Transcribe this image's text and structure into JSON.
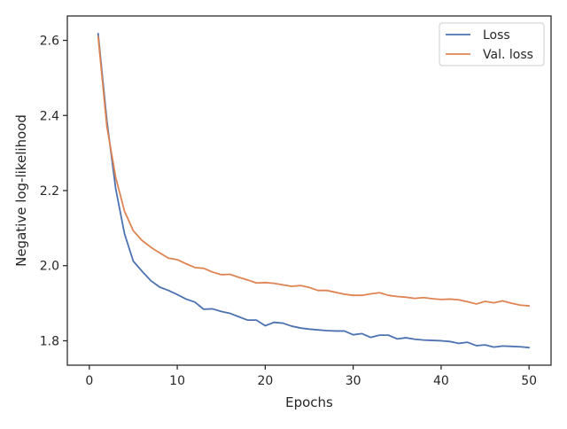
{
  "chart_data": {
    "type": "line",
    "xlabel": "Epochs",
    "ylabel": "Negative log-likelihood",
    "xlim": [
      -2.5,
      52.5
    ],
    "ylim": [
      1.735,
      2.665
    ],
    "xticks": [
      0,
      10,
      20,
      30,
      40,
      50
    ],
    "yticks": [
      1.8,
      2.0,
      2.2,
      2.4,
      2.6
    ],
    "xtick_labels": [
      "0",
      "10",
      "20",
      "30",
      "40",
      "50"
    ],
    "ytick_labels": [
      "1.8",
      "2.0",
      "2.2",
      "2.4",
      "2.6"
    ],
    "grid": false,
    "legend_position": "top-right",
    "x": [
      1,
      2,
      3,
      4,
      5,
      6,
      7,
      8,
      9,
      10,
      11,
      12,
      13,
      14,
      15,
      16,
      17,
      18,
      19,
      20,
      21,
      22,
      23,
      24,
      25,
      26,
      27,
      28,
      29,
      30,
      31,
      32,
      33,
      34,
      35,
      36,
      37,
      38,
      39,
      40,
      41,
      42,
      43,
      44,
      45,
      46,
      47,
      48,
      49,
      50
    ],
    "series": [
      {
        "name": "Loss",
        "color": "#4c72b0",
        "values": [
          2.618,
          2.385,
          2.205,
          2.085,
          2.012,
          1.985,
          1.96,
          1.943,
          1.934,
          1.923,
          1.911,
          1.903,
          1.884,
          1.885,
          1.878,
          1.873,
          1.864,
          1.855,
          1.855,
          1.84,
          1.849,
          1.847,
          1.839,
          1.834,
          1.831,
          1.829,
          1.827,
          1.826,
          1.826,
          1.816,
          1.819,
          1.809,
          1.815,
          1.815,
          1.805,
          1.808,
          1.804,
          1.802,
          1.801,
          1.8,
          1.798,
          1.793,
          1.796,
          1.787,
          1.789,
          1.783,
          1.786,
          1.785,
          1.784,
          1.782
        ]
      },
      {
        "name": "Val. loss",
        "color": "#dd8452",
        "values": [
          2.61,
          2.37,
          2.235,
          2.145,
          2.093,
          2.067,
          2.049,
          2.034,
          2.02,
          2.016,
          2.005,
          1.995,
          1.993,
          1.983,
          1.976,
          1.977,
          1.969,
          1.962,
          1.954,
          1.955,
          1.953,
          1.949,
          1.945,
          1.947,
          1.942,
          1.934,
          1.934,
          1.929,
          1.924,
          1.921,
          1.921,
          1.925,
          1.928,
          1.921,
          1.918,
          1.916,
          1.913,
          1.915,
          1.912,
          1.91,
          1.911,
          1.909,
          1.904,
          1.898,
          1.905,
          1.901,
          1.906,
          1.9,
          1.895,
          1.893
        ]
      }
    ]
  }
}
